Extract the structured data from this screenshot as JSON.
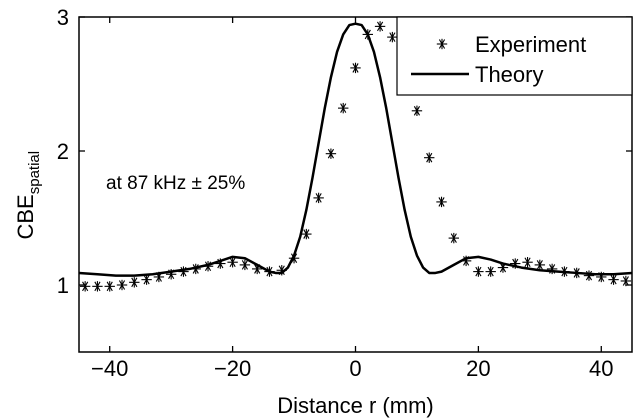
{
  "chart_data": {
    "type": "line",
    "title": "",
    "xlabel": "Distance r (mm)",
    "ylabel_main": "CBE",
    "ylabel_sub": "spatial",
    "xlim": [
      -45,
      45
    ],
    "ylim": [
      0.5,
      3
    ],
    "xticks": [
      -40,
      -20,
      0,
      20,
      40
    ],
    "xtick_labels": [
      "−40",
      "−20",
      "0",
      "20",
      "40"
    ],
    "yticks": [
      1,
      2,
      3
    ],
    "ytick_labels": [
      "1",
      "2",
      "3"
    ],
    "grid": false,
    "legend_position": "top-right",
    "annotation": "at 87 kHz ± 25%",
    "series": [
      {
        "name": "Experiment",
        "style": "asterisk-markers",
        "color": "#000000",
        "x": [
          -44,
          -42,
          -40,
          -38,
          -36,
          -34,
          -32,
          -30,
          -28,
          -26,
          -24,
          -22,
          -20,
          -18,
          -16,
          -14,
          -12,
          -10,
          -8,
          -6,
          -4,
          -2,
          0,
          2,
          4,
          6,
          8,
          10,
          12,
          14,
          16,
          18,
          20,
          22,
          24,
          26,
          28,
          30,
          32,
          34,
          36,
          38,
          40,
          42,
          44
        ],
        "y": [
          0.99,
          0.99,
          0.99,
          1.0,
          1.02,
          1.04,
          1.06,
          1.08,
          1.1,
          1.12,
          1.14,
          1.16,
          1.17,
          1.15,
          1.12,
          1.1,
          1.11,
          1.2,
          1.38,
          1.65,
          1.98,
          2.32,
          2.62,
          2.87,
          2.93,
          2.85,
          2.6,
          2.3,
          1.95,
          1.62,
          1.35,
          1.18,
          1.1,
          1.1,
          1.13,
          1.16,
          1.17,
          1.15,
          1.12,
          1.1,
          1.09,
          1.07,
          1.06,
          1.04,
          1.03
        ]
      },
      {
        "name": "Theory",
        "style": "solid-line",
        "color": "#000000",
        "x": [
          -45,
          -42,
          -39,
          -36,
          -33,
          -30,
          -27,
          -24,
          -22,
          -20,
          -18,
          -16,
          -14,
          -13,
          -12,
          -11,
          -10,
          -9,
          -8,
          -7,
          -6,
          -5,
          -4,
          -3,
          -2,
          -1,
          0,
          1,
          2,
          3,
          4,
          5,
          6,
          7,
          8,
          9,
          10,
          11,
          12,
          13,
          14,
          16,
          18,
          20,
          22,
          24,
          27,
          30,
          33,
          36,
          39,
          42,
          45
        ],
        "y": [
          1.09,
          1.08,
          1.07,
          1.07,
          1.08,
          1.1,
          1.12,
          1.15,
          1.18,
          1.21,
          1.2,
          1.15,
          1.1,
          1.09,
          1.09,
          1.13,
          1.22,
          1.36,
          1.56,
          1.8,
          2.06,
          2.32,
          2.55,
          2.74,
          2.87,
          2.94,
          2.95,
          2.94,
          2.87,
          2.74,
          2.55,
          2.32,
          2.06,
          1.8,
          1.56,
          1.36,
          1.22,
          1.13,
          1.09,
          1.09,
          1.1,
          1.15,
          1.2,
          1.21,
          1.19,
          1.16,
          1.13,
          1.11,
          1.1,
          1.09,
          1.08,
          1.08,
          1.09
        ]
      }
    ]
  }
}
